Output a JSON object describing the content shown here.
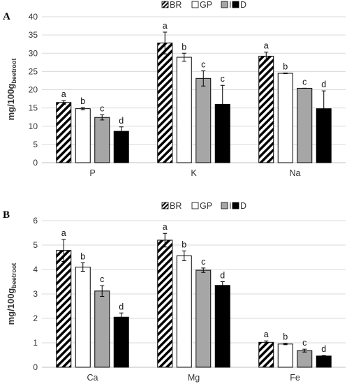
{
  "chart_data": [
    {
      "type": "bar",
      "panel": "A",
      "categories": [
        "P",
        "K",
        "Na"
      ],
      "series": [
        {
          "name": "BR",
          "values": [
            16.5,
            32.8,
            29.2
          ],
          "errors": [
            0.5,
            3.0,
            1.1
          ],
          "letters": [
            "a",
            "a",
            "a"
          ],
          "pattern": "hatch"
        },
        {
          "name": "GP",
          "values": [
            14.8,
            28.9,
            24.5
          ],
          "errors": [
            0.3,
            1.1,
            0.1
          ],
          "letters": [
            "b",
            "b",
            "b"
          ],
          "color": "#ffffff"
        },
        {
          "name": "IP",
          "values": [
            12.4,
            23.1,
            20.4
          ],
          "errors": [
            0.7,
            2.1,
            0.0
          ],
          "letters": [
            "c",
            "c",
            "c"
          ],
          "color": "#a6a6a6"
        },
        {
          "name": "D",
          "values": [
            8.6,
            16.0,
            14.8
          ],
          "errors": [
            1.2,
            5.2,
            4.9
          ],
          "letters": [
            "d",
            "c",
            "d"
          ],
          "color": "#000000"
        }
      ],
      "ylabel": "mg/100g",
      "ylabel_sub": "beetroot",
      "ylim": [
        0,
        40
      ],
      "yticks": [
        0,
        5,
        10,
        15,
        20,
        25,
        30,
        35,
        40
      ],
      "grid": true,
      "legend": "top-center"
    },
    {
      "type": "bar",
      "panel": "B",
      "categories": [
        "Ca",
        "Mg",
        "Fe"
      ],
      "series": [
        {
          "name": "BR",
          "values": [
            4.78,
            5.2,
            1.02
          ],
          "errors": [
            0.45,
            0.28,
            0.06
          ],
          "letters": [
            "a",
            "a",
            "a"
          ],
          "pattern": "hatch"
        },
        {
          "name": "GP",
          "values": [
            4.1,
            4.56,
            0.95
          ],
          "errors": [
            0.17,
            0.2,
            0.03
          ],
          "letters": [
            "b",
            "b",
            "b"
          ],
          "color": "#ffffff"
        },
        {
          "name": "IP",
          "values": [
            3.12,
            3.97,
            0.68
          ],
          "errors": [
            0.22,
            0.09,
            0.06
          ],
          "letters": [
            "c",
            "c",
            "c"
          ],
          "color": "#a6a6a6"
        },
        {
          "name": "D",
          "values": [
            2.05,
            3.35,
            0.46
          ],
          "errors": [
            0.17,
            0.15,
            0.02
          ],
          "letters": [
            "d",
            "d",
            "d"
          ],
          "color": "#000000"
        }
      ],
      "ylabel": "mg/100g",
      "ylabel_sub": "beetroot",
      "ylim": [
        0,
        6
      ],
      "yticks": [
        0,
        1,
        2,
        3,
        4,
        5,
        6
      ],
      "grid": true,
      "legend": "top-center"
    }
  ]
}
